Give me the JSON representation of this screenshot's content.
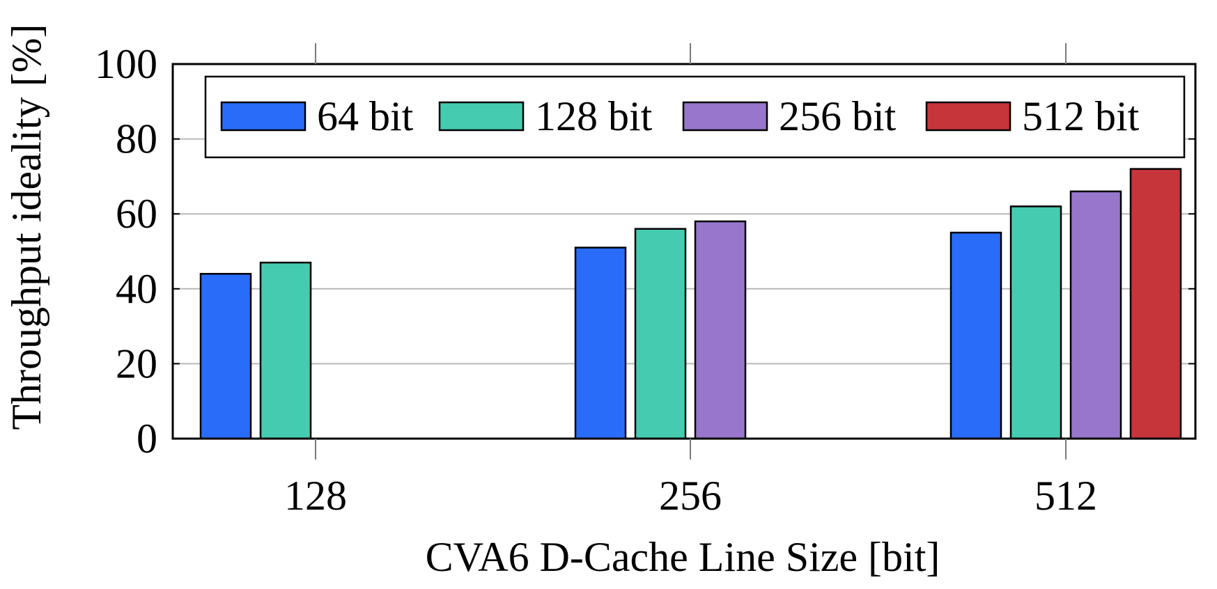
{
  "chart_data": {
    "type": "bar",
    "title": "",
    "xlabel": "CVA6 D-Cache Line Size [bit]",
    "ylabel": "Throughput ideality [%]",
    "categories": [
      "128",
      "256",
      "512"
    ],
    "ylim": [
      0,
      100
    ],
    "yticks": [
      "0",
      "20",
      "40",
      "60",
      "80",
      "100"
    ],
    "grid": "horizontal",
    "legend_position": "top",
    "series": [
      {
        "name": "64 bit",
        "color": "#2a6cfa",
        "values": [
          44,
          51,
          55
        ]
      },
      {
        "name": "128 bit",
        "color": "#45cbb0",
        "values": [
          47,
          56,
          62
        ]
      },
      {
        "name": "256 bit",
        "color": "#9776cb",
        "values": [
          null,
          58,
          66
        ]
      },
      {
        "name": "512 bit",
        "color": "#c6353a",
        "values": [
          null,
          null,
          72
        ]
      }
    ]
  }
}
